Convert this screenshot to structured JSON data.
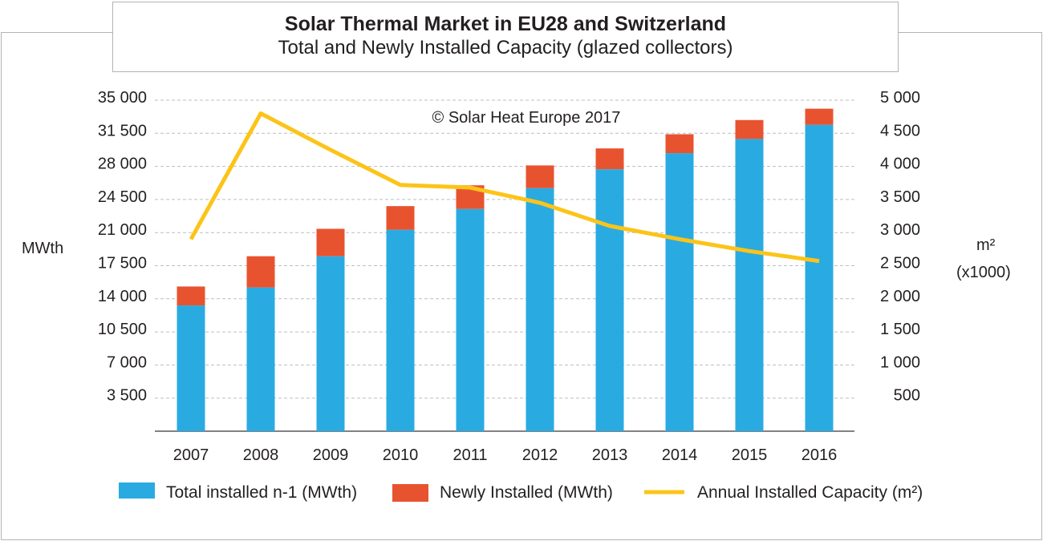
{
  "chart_data": {
    "type": "bar",
    "title": "Solar Thermal Market in EU28 and Switzerland",
    "subtitle": "Total and Newly Installed Capacity (glazed collectors)",
    "annotation": "© Solar Heat Europe 2017",
    "categories": [
      "2007",
      "2008",
      "2009",
      "2010",
      "2011",
      "2012",
      "2013",
      "2014",
      "2015",
      "2016"
    ],
    "stacked": true,
    "series": [
      {
        "name": "Total installed n-1 (MWth)",
        "color": "#29abe2",
        "axis": "left",
        "values": [
          13300,
          15200,
          18500,
          21300,
          23500,
          25700,
          27700,
          29400,
          30900,
          32400
        ]
      },
      {
        "name": "Newly Installed (MWth)",
        "color": "#e8532f",
        "axis": "left",
        "values": [
          2000,
          3300,
          2900,
          2500,
          2500,
          2400,
          2200,
          2000,
          2000,
          1700
        ]
      },
      {
        "name": "Annual Installed Capacity (m²)",
        "type": "line",
        "color": "#fcc419",
        "axis": "right",
        "values": [
          2900,
          4800,
          4250,
          3720,
          3680,
          3450,
          3100,
          2900,
          2720,
          2570
        ]
      }
    ],
    "y_left": {
      "label": "MWth",
      "ticks": [
        "3 500",
        "7 000",
        "10 500",
        "14 000",
        "17 500",
        "21 000",
        "24 500",
        "28 000",
        "31 500",
        "35 000"
      ],
      "range": [
        0,
        35000
      ]
    },
    "y_right": {
      "label": "m²",
      "label2": "(x1000)",
      "ticks": [
        "500",
        "1 000",
        "1 500",
        "2 000",
        "2 500",
        "3 000",
        "3 500",
        "4 000",
        "4 500",
        "5 000"
      ],
      "range": [
        0,
        5000
      ]
    },
    "grid": true,
    "legend_position": "bottom"
  }
}
